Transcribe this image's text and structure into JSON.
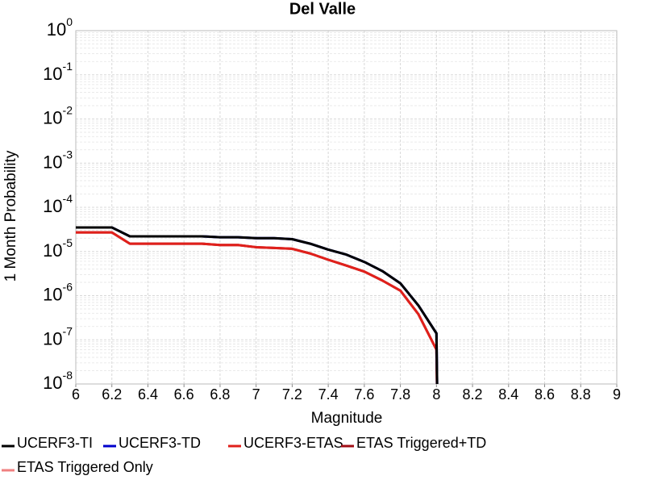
{
  "chart_data": {
    "type": "line",
    "title": "Del Valle",
    "x_label": "Magnitude",
    "y_label": "1 Month Probability",
    "log_y": true,
    "grid": true,
    "legend": "bottom",
    "x": [
      6.0,
      6.1,
      6.2,
      6.3,
      6.4,
      6.5,
      6.6,
      6.7,
      6.8,
      6.9,
      7.0,
      7.1,
      7.2,
      7.3,
      7.4,
      7.5,
      7.6,
      7.7,
      7.8,
      7.9,
      8.0,
      8.01
    ],
    "series": [
      {
        "name": "UCERF3-TI",
        "color": "#000000",
        "values": [
          3.5e-05,
          3.5e-05,
          3.5e-05,
          2.2e-05,
          2.2e-05,
          2.2e-05,
          2.2e-05,
          2.2e-05,
          2.1e-05,
          2.1e-05,
          2e-05,
          2e-05,
          1.9e-05,
          1.5e-05,
          1.1e-05,
          8.5e-06,
          5.8e-06,
          3.6e-06,
          1.9e-06,
          6e-07,
          1.4e-07,
          1e-10
        ]
      },
      {
        "name": "UCERF3-TD",
        "color": "#0000cc",
        "values": [
          3.5e-05,
          3.5e-05,
          3.5e-05,
          2.2e-05,
          2.2e-05,
          2.2e-05,
          2.2e-05,
          2.2e-05,
          2.1e-05,
          2.1e-05,
          2e-05,
          2e-05,
          1.9e-05,
          1.5e-05,
          1.1e-05,
          8.5e-06,
          5.8e-06,
          3.6e-06,
          1.9e-06,
          6e-07,
          1.4e-07,
          1e-10
        ]
      },
      {
        "name": "UCERF3-ETAS",
        "color": "#e0201b",
        "values": [
          2.7e-05,
          2.7e-05,
          2.7e-05,
          1.5e-05,
          1.5e-05,
          1.5e-05,
          1.5e-05,
          1.5e-05,
          1.4e-05,
          1.4e-05,
          1.25e-05,
          1.2e-05,
          1.15e-05,
          9e-06,
          6.5e-06,
          4.8e-06,
          3.5e-06,
          2.2e-06,
          1.3e-06,
          3.8e-07,
          6e-08,
          1e-10
        ]
      },
      {
        "name": "ETAS Triggered+TD",
        "color": "#a00d14",
        "values": [
          2.7e-05,
          2.7e-05,
          2.7e-05,
          1.5e-05,
          1.5e-05,
          1.5e-05,
          1.5e-05,
          1.5e-05,
          1.4e-05,
          1.4e-05,
          1.25e-05,
          1.2e-05,
          1.15e-05,
          9e-06,
          6.5e-06,
          4.8e-06,
          3.5e-06,
          2.2e-06,
          1.3e-06,
          3.8e-07,
          6e-08,
          1e-10
        ]
      },
      {
        "name": "ETAS Triggered Only",
        "color": "#f08080",
        "values": [
          null,
          null,
          null,
          null,
          null,
          null,
          null,
          null,
          null,
          null,
          null,
          null,
          null,
          null,
          null,
          null,
          null,
          null,
          null,
          null,
          null,
          null
        ]
      }
    ],
    "xlim": [
      6,
      9
    ],
    "xticks": [
      6,
      6.2,
      6.4,
      6.6,
      6.8,
      7,
      7.2,
      7.4,
      7.6,
      7.8,
      8,
      8.2,
      8.4,
      8.6,
      8.8,
      9
    ],
    "ylim": [
      1e-08,
      1
    ],
    "yticks": [
      {
        "value": 1,
        "label": "10^0"
      },
      {
        "value": 0.1,
        "label": "10^-1"
      },
      {
        "value": 0.01,
        "label": "10^-2"
      },
      {
        "value": 0.001,
        "label": "10^-3"
      },
      {
        "value": 0.0001,
        "label": "10^-4"
      },
      {
        "value": 1e-05,
        "label": "10^-5"
      },
      {
        "value": 1e-06,
        "label": "10^-6"
      },
      {
        "value": 1e-07,
        "label": "10^-7"
      },
      {
        "value": 1e-08,
        "label": "10^-8"
      }
    ]
  }
}
